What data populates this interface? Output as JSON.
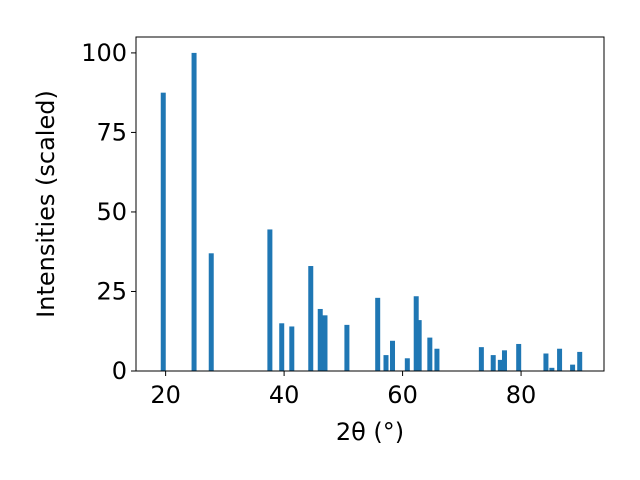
{
  "chart_data": {
    "type": "bar",
    "xlabel": "2θ (°)",
    "ylabel": "Intensities (scaled)",
    "xlim": [
      15,
      94
    ],
    "ylim": [
      0,
      105
    ],
    "xticks": [
      20,
      40,
      60,
      80
    ],
    "yticks": [
      0,
      25,
      50,
      75,
      100
    ],
    "grid": false,
    "bar_color": "#1f77b4",
    "x": [
      19.6,
      24.8,
      27.7,
      37.6,
      39.6,
      41.3,
      44.5,
      46.1,
      46.9,
      50.6,
      55.8,
      57.2,
      58.3,
      60.8,
      62.3,
      62.8,
      64.6,
      65.8,
      73.3,
      75.3,
      76.5,
      77.2,
      79.6,
      84.2,
      85.2,
      86.5,
      88.7,
      89.9
    ],
    "values": [
      87.5,
      100.0,
      37.0,
      44.5,
      15.0,
      14.0,
      33.0,
      19.5,
      17.5,
      14.5,
      23.0,
      5.0,
      9.5,
      4.0,
      23.5,
      16.0,
      10.5,
      7.0,
      7.5,
      5.0,
      3.5,
      6.5,
      8.5,
      5.5,
      1.0,
      7.0,
      2.0,
      6.0
    ]
  }
}
